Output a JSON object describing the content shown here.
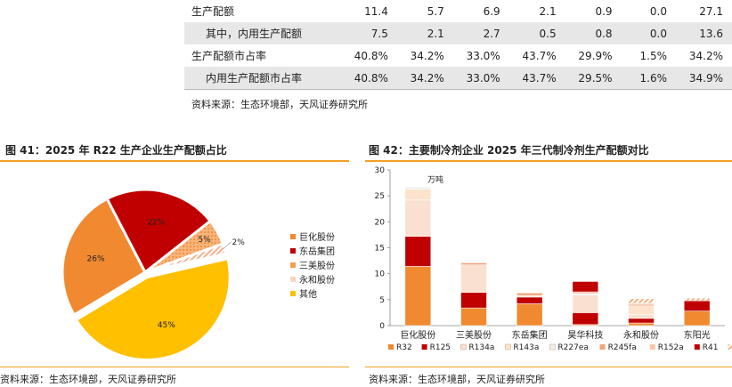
{
  "table": {
    "rows": [
      {
        "label": "生产配额",
        "indent": false,
        "shaded": false,
        "values": [
          "11.4",
          "5.7",
          "6.9",
          "2.1",
          "0.9",
          "0.0",
          "27.1"
        ]
      },
      {
        "label": "其中，内用生产配额",
        "indent": true,
        "shaded": true,
        "values": [
          "7.5",
          "2.1",
          "2.7",
          "0.5",
          "0.8",
          "0.0",
          "13.6"
        ]
      },
      {
        "label": "生产配额市占率",
        "indent": false,
        "shaded": false,
        "values": [
          "40.8%",
          "34.2%",
          "33.0%",
          "43.7%",
          "29.9%",
          "1.5%",
          "34.2%"
        ]
      },
      {
        "label": "内用生产配额市占率",
        "indent": true,
        "shaded": true,
        "values": [
          "40.8%",
          "34.2%",
          "33.0%",
          "43.7%",
          "29.5%",
          "1.6%",
          "34.9%"
        ]
      }
    ],
    "source": "资料来源：生态环境部，天风证券研究所"
  },
  "fig41": {
    "title": "图 41：2025 年 R22 生产企业生产配额占比",
    "source": "资料来源：生态环境部，天风证券研究所"
  },
  "fig42": {
    "title": "图 42：主要制冷剂企业 2025 年三代制冷剂生产配额对比",
    "unit": "万吨",
    "source": "资料来源：生态环境部，天风证券研究所"
  },
  "chart_data": [
    {
      "type": "pie",
      "slices": [
        {
          "name": "巨化股份",
          "value": 26,
          "label": "26%",
          "color": "#f0892f"
        },
        {
          "name": "东岳集团",
          "value": 22,
          "label": "22%",
          "color": "#c00000"
        },
        {
          "name": "三美股份",
          "value": 5,
          "label": "5%",
          "color": "#f59d4f",
          "pattern": "dots"
        },
        {
          "name": "永和股份",
          "value": 2,
          "label": "2%",
          "color": "#f6b08a",
          "pattern": "stripes"
        },
        {
          "name": "其他",
          "value": 45,
          "label": "45%",
          "color": "#ffc000"
        }
      ],
      "legend_position": "right"
    },
    {
      "type": "bar",
      "stacked": true,
      "categories": [
        "巨化股份",
        "三美股份",
        "东岳集团",
        "昊华科技",
        "永和股份",
        "东阳光"
      ],
      "ylim": [
        0,
        30
      ],
      "yticks": [
        0,
        5,
        10,
        15,
        20,
        25,
        30
      ],
      "legend_position": "bottom",
      "series": [
        {
          "name": "R32",
          "color": "#f0892f",
          "values": [
            11.4,
            3.4,
            4.2,
            0.2,
            0.5,
            2.8
          ]
        },
        {
          "name": "R125",
          "color": "#c00000",
          "values": [
            5.8,
            3.0,
            1.3,
            2.3,
            0.9,
            2.0
          ]
        },
        {
          "name": "R134a",
          "color": "#fae0d0",
          "values": [
            7.0,
            5.3,
            0.0,
            3.4,
            0.7,
            0.0
          ]
        },
        {
          "name": "R143a",
          "color": "#fde3cc",
          "values": [
            2.1,
            0.0,
            0.3,
            0.0,
            1.7,
            0.0
          ]
        },
        {
          "name": "R227ea",
          "color": "#efefef",
          "values": [
            0.4,
            0.0,
            0.0,
            0.3,
            0.0,
            0.0
          ]
        },
        {
          "name": "R245fa",
          "color": "#f2a57b",
          "values": [
            0.0,
            0.4,
            0.5,
            0.3,
            0.3,
            0.0
          ]
        },
        {
          "name": "R152a",
          "color": "#f9c7a8",
          "values": [
            0.0,
            0.0,
            0.0,
            0.0,
            0.2,
            0.0
          ]
        },
        {
          "name": "R41",
          "color": "#c00000",
          "values": [
            0.0,
            0.0,
            0.0,
            2.0,
            0.0,
            0.0
          ]
        },
        {
          "name": "R236fa",
          "color": "#f4b183",
          "values": [
            0.0,
            0.0,
            0.0,
            0.0,
            0.9,
            0.5
          ]
        }
      ]
    }
  ]
}
